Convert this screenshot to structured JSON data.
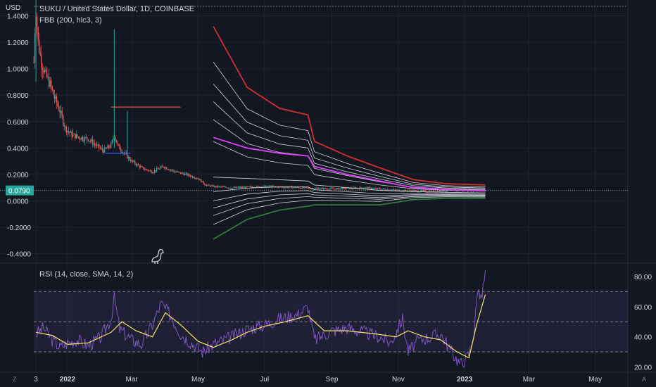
{
  "header": {
    "axis_currency": "USD",
    "title": "SUKU / United States Dollar, 1D, COINBASE",
    "indicator": "FBB (200, hlc3, 3)",
    "rsi_label": "RSI (14, close, SMA, 14, 2)"
  },
  "price_axis": {
    "ticks": [
      "1.4000",
      "1.2000",
      "1.0000",
      "0.8000",
      "0.6000",
      "0.4000",
      "0.2000",
      "0.0000",
      "-0.2000",
      "-0.4000"
    ],
    "current_price": "0.0790"
  },
  "rsi_axis": {
    "ticks": [
      "80.00",
      "60.00",
      "40.00",
      "20.00"
    ]
  },
  "time_axis": {
    "ticks": [
      "3",
      "2022",
      "Mar",
      "May",
      "Jul",
      "Sep",
      "Nov",
      "2023",
      "Mar",
      "May"
    ]
  },
  "footer": {
    "left_button": "Z",
    "right_button": "A"
  },
  "colors": {
    "background": "#131722",
    "text": "#d1d4dc",
    "grid": "#1e222d",
    "candle_up": "#26a69a",
    "candle_down": "#ef5350",
    "fbb_upper": "#d32f2f",
    "fbb_mid": "#e040fb",
    "fbb_inner": "#cfd2d9",
    "fbb_lower": "#2e7d32",
    "rsi_line": "#7e57c2",
    "rsi_ma": "#f5e663",
    "rsi_band": "#7e57c2",
    "current_price_badge": "#26a69a"
  },
  "chart_data": [
    {
      "type": "candlestick",
      "title": "SUKU / United States Dollar, 1D, COINBASE",
      "ylabel": "USD",
      "ylim": [
        -0.45,
        1.52
      ],
      "x_range": [
        "2021-12-01",
        "2023-05-31"
      ],
      "current_price": 0.079,
      "price_path": [
        [
          "2021-12-01",
          1.05
        ],
        [
          "2021-12-02",
          1.3
        ],
        [
          "2021-12-03",
          1.45
        ],
        [
          "2021-12-05",
          1.2
        ],
        [
          "2021-12-08",
          1.05
        ],
        [
          "2021-12-12",
          0.95
        ],
        [
          "2021-12-16",
          0.88
        ],
        [
          "2021-12-20",
          0.78
        ],
        [
          "2021-12-25",
          0.68
        ],
        [
          "2021-12-30",
          0.55
        ],
        [
          "2022-01-05",
          0.5
        ],
        [
          "2022-01-12",
          0.48
        ],
        [
          "2022-01-20",
          0.47
        ],
        [
          "2022-01-27",
          0.42
        ],
        [
          "2022-02-03",
          0.38
        ],
        [
          "2022-02-10",
          0.42
        ],
        [
          "2022-02-13",
          0.5
        ],
        [
          "2022-02-16",
          0.42
        ],
        [
          "2022-02-22",
          0.36
        ],
        [
          "2022-03-01",
          0.3
        ],
        [
          "2022-03-10",
          0.25
        ],
        [
          "2022-03-20",
          0.22
        ],
        [
          "2022-03-30",
          0.26
        ],
        [
          "2022-04-10",
          0.22
        ],
        [
          "2022-04-20",
          0.2
        ],
        [
          "2022-05-01",
          0.17
        ],
        [
          "2022-05-08",
          0.12
        ],
        [
          "2022-05-15",
          0.11
        ],
        [
          "2022-06-01",
          0.1
        ],
        [
          "2022-07-01",
          0.11
        ],
        [
          "2022-08-01",
          0.1
        ],
        [
          "2022-09-01",
          0.09
        ],
        [
          "2022-10-01",
          0.1
        ],
        [
          "2022-11-01",
          0.08
        ],
        [
          "2022-12-01",
          0.07
        ],
        [
          "2022-12-20",
          0.08
        ],
        [
          "2023-01-05",
          0.08
        ],
        [
          "2023-01-20",
          0.079
        ]
      ],
      "spikes": [
        {
          "date": "2021-12-03",
          "high": 1.52,
          "low": 0.9
        },
        {
          "date": "2022-02-13",
          "high": 1.3,
          "low": 0.4
        },
        {
          "date": "2022-02-25",
          "high": 0.68,
          "low": 0.36
        }
      ],
      "horizontal_lines": [
        {
          "from": "2022-02-10",
          "to": "2022-04-15",
          "value": 0.71,
          "color": "#ef5350"
        },
        {
          "from": "2022-02-05",
          "to": "2022-02-28",
          "value": 0.36,
          "color": "#2962ff"
        }
      ],
      "fbb_bands": {
        "dates": [
          "2022-05-15",
          "2022-06-15",
          "2022-07-15",
          "2022-08-10",
          "2022-08-16",
          "2022-09-15",
          "2022-10-15",
          "2022-11-15",
          "2022-12-15",
          "2023-01-20"
        ],
        "upper": [
          1.32,
          0.86,
          0.7,
          0.65,
          0.45,
          0.34,
          0.25,
          0.16,
          0.13,
          0.12
        ],
        "mid": [
          0.48,
          0.4,
          0.36,
          0.34,
          0.26,
          0.2,
          0.15,
          0.1,
          0.085,
          0.075
        ],
        "basis": [
          0.18,
          0.17,
          0.16,
          0.15,
          0.12,
          0.1,
          0.08,
          0.07,
          0.065,
          0.06
        ],
        "lower": [
          -0.29,
          -0.14,
          -0.07,
          -0.04,
          -0.03,
          -0.03,
          -0.03,
          0.01,
          0.02,
          0.02
        ]
      }
    },
    {
      "type": "line",
      "title": "RSI (14, close, SMA, 14, 2)",
      "ylim": [
        17,
        87
      ],
      "yticks": [
        80,
        60,
        40,
        20
      ],
      "band": [
        30,
        70
      ],
      "series": [
        {
          "values": [
            [
              "2021-12-03",
              42
            ],
            [
              "2021-12-10",
              46
            ],
            [
              "2021-12-18",
              38
            ],
            [
              "2021-12-25",
              33
            ],
            [
              "2022-01-01",
              36
            ],
            [
              "2022-01-10",
              38
            ],
            [
              "2022-01-20",
              34
            ],
            [
              "2022-02-01",
              40
            ],
            [
              "2022-02-10",
              52
            ],
            [
              "2022-02-13",
              66
            ],
            [
              "2022-02-18",
              45
            ],
            [
              "2022-03-01",
              38
            ],
            [
              "2022-03-10",
              35
            ],
            [
              "2022-03-20",
              48
            ],
            [
              "2022-03-28",
              62
            ],
            [
              "2022-04-05",
              55
            ],
            [
              "2022-04-15",
              42
            ],
            [
              "2022-04-25",
              36
            ],
            [
              "2022-05-05",
              30
            ],
            [
              "2022-05-15",
              35
            ],
            [
              "2022-06-01",
              40
            ],
            [
              "2022-06-15",
              45
            ],
            [
              "2022-07-01",
              48
            ],
            [
              "2022-07-15",
              52
            ],
            [
              "2022-08-01",
              55
            ],
            [
              "2022-08-10",
              60
            ],
            [
              "2022-08-16",
              38
            ],
            [
              "2022-09-01",
              44
            ],
            [
              "2022-09-15",
              46
            ],
            [
              "2022-10-01",
              43
            ],
            [
              "2022-10-15",
              40
            ],
            [
              "2022-10-25",
              36
            ],
            [
              "2022-11-05",
              52
            ],
            [
              "2022-11-10",
              30
            ],
            [
              "2022-11-20",
              38
            ],
            [
              "2022-12-01",
              40
            ],
            [
              "2022-12-10",
              42
            ],
            [
              "2022-12-20",
              30
            ],
            [
              "2022-12-28",
              22
            ],
            [
              "2023-01-05",
              28
            ],
            [
              "2023-01-10",
              45
            ],
            [
              "2023-01-13",
              73
            ],
            [
              "2023-01-16",
              64
            ],
            [
              "2023-01-20",
              82
            ]
          ]
        },
        {
          "values": [
            [
              "2021-12-03",
              43
            ],
            [
              "2021-12-18",
              41
            ],
            [
              "2022-01-01",
              35
            ],
            [
              "2022-01-20",
              36
            ],
            [
              "2022-02-10",
              43
            ],
            [
              "2022-02-20",
              50
            ],
            [
              "2022-03-05",
              44
            ],
            [
              "2022-03-20",
              40
            ],
            [
              "2022-04-01",
              56
            ],
            [
              "2022-04-15",
              48
            ],
            [
              "2022-05-01",
              37
            ],
            [
              "2022-05-15",
              33
            ],
            [
              "2022-06-01",
              38
            ],
            [
              "2022-06-15",
              43
            ],
            [
              "2022-07-01",
              47
            ],
            [
              "2022-07-20",
              50
            ],
            [
              "2022-08-10",
              54
            ],
            [
              "2022-08-25",
              44
            ],
            [
              "2022-09-15",
              44
            ],
            [
              "2022-10-10",
              42
            ],
            [
              "2022-10-30",
              40
            ],
            [
              "2022-11-10",
              44
            ],
            [
              "2022-11-25",
              40
            ],
            [
              "2022-12-10",
              38
            ],
            [
              "2022-12-25",
              30
            ],
            [
              "2023-01-05",
              26
            ],
            [
              "2023-01-12",
              48
            ],
            [
              "2023-01-20",
              68
            ]
          ]
        }
      ]
    }
  ]
}
